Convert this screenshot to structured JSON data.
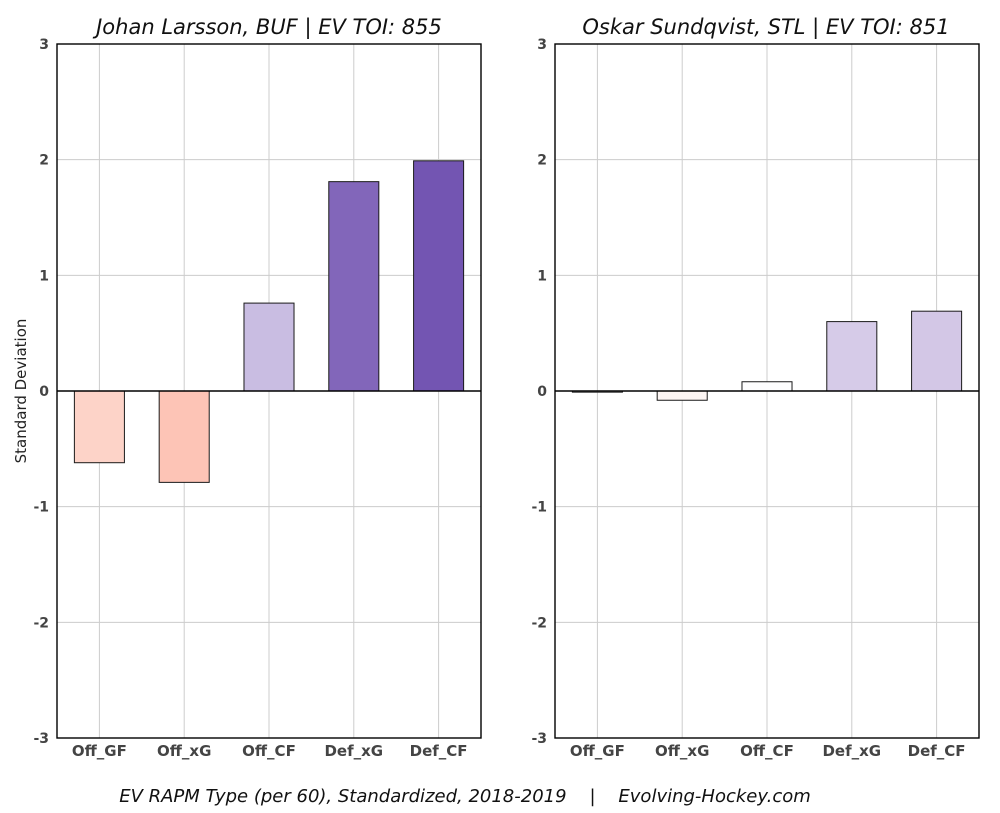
{
  "caption": "EV RAPM Type (per 60), Standardized, 2018-2019    |    Evolving-Hockey.com",
  "chart_data": [
    {
      "type": "bar",
      "title": "Johan Larsson, BUF  |  EV TOI: 855",
      "ylabel": "Standard Deviation",
      "xlabel": "",
      "categories": [
        "Off_GF",
        "Off_xG",
        "Off_CF",
        "Def_xG",
        "Def_CF"
      ],
      "values": [
        -0.62,
        -0.79,
        0.76,
        1.81,
        1.99
      ],
      "colors": [
        "#fdd3c8",
        "#fdc4b6",
        "#c9bde2",
        "#8266ba",
        "#7355b2"
      ],
      "ylim": [
        -3,
        3
      ],
      "yticks": [
        -3,
        -2,
        -1,
        0,
        1,
        2,
        3
      ],
      "grid": true
    },
    {
      "type": "bar",
      "title": "Oskar Sundqvist, STL  |  EV TOI: 851",
      "ylabel": "",
      "xlabel": "",
      "categories": [
        "Off_GF",
        "Off_xG",
        "Off_CF",
        "Def_xG",
        "Def_CF"
      ],
      "values": [
        -0.01,
        -0.08,
        0.08,
        0.6,
        0.69
      ],
      "colors": [
        "#ffffff",
        "#fcf5f3",
        "#fdfdfe",
        "#d6cbe8",
        "#d3c7e6"
      ],
      "ylim": [
        -3,
        3
      ],
      "yticks": [
        -3,
        -2,
        -1,
        0,
        1,
        2,
        3
      ],
      "grid": true
    }
  ]
}
